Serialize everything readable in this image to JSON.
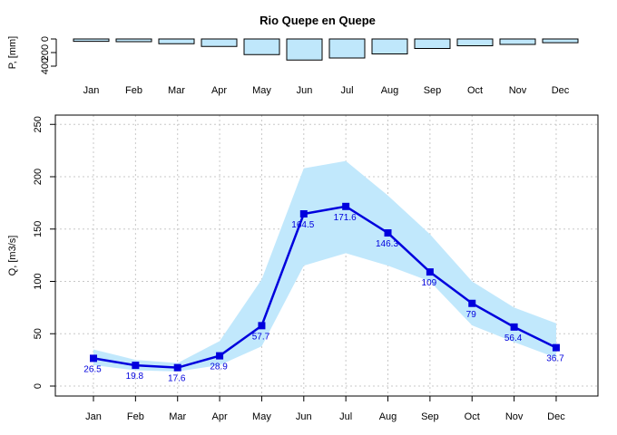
{
  "chart_data": [
    {
      "type": "bar",
      "title": "Rio Quepe en Quepe",
      "ylabel": "P, [mm]",
      "ylim": [
        0,
        400
      ],
      "y_reversed": true,
      "yticks": [
        "0",
        "200",
        "400"
      ],
      "categories": [
        "Jan",
        "Feb",
        "Mar",
        "Apr",
        "May",
        "Jun",
        "Jul",
        "Aug",
        "Sep",
        "Oct",
        "Nov",
        "Dec"
      ],
      "values": [
        35,
        40,
        70,
        110,
        230,
        310,
        280,
        220,
        140,
        100,
        80,
        55
      ],
      "bar_color": "#bfe7fb",
      "border_color": "#000000"
    },
    {
      "type": "line",
      "ylabel": "Q, [m3/s]",
      "xlabel": "",
      "ylim": [
        0,
        250
      ],
      "yticks": [
        "0",
        "50",
        "100",
        "150",
        "200",
        "250"
      ],
      "categories": [
        "Jan",
        "Feb",
        "Mar",
        "Apr",
        "May",
        "Jun",
        "Jul",
        "Aug",
        "Sep",
        "Oct",
        "Nov",
        "Dec"
      ],
      "values": [
        26.5,
        19.8,
        17.6,
        28.9,
        57.7,
        164.5,
        171.6,
        146.3,
        109,
        79,
        56.4,
        36.7
      ],
      "labels": [
        "26.5",
        "19.8",
        "17.6",
        "28.9",
        "57.7",
        "164.5",
        "171.6",
        "146.3",
        "109",
        "79",
        "56.4",
        "36.7"
      ],
      "band_upper": [
        35,
        25,
        22,
        43,
        102,
        208,
        215,
        182,
        145,
        100,
        75,
        60
      ],
      "band_lower": [
        20,
        15,
        14,
        20,
        38,
        115,
        127,
        115,
        100,
        58,
        42,
        27
      ],
      "grid": true,
      "line_color": "#0000dd",
      "band_color": "#c1e8fc",
      "grid_color": "#c8c8c8"
    }
  ]
}
